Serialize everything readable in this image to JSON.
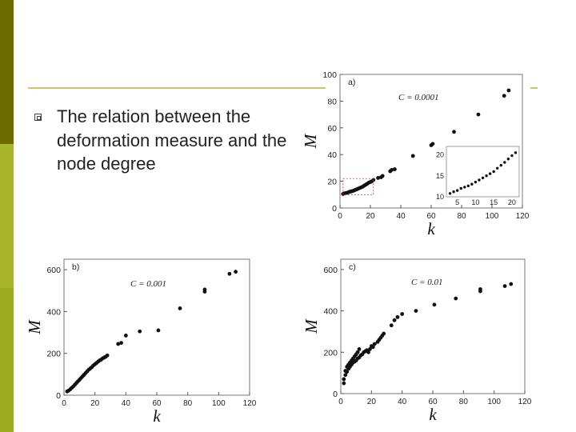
{
  "slide": {
    "body_text": "The relation between the deformation measure and the node degree",
    "accent_colors": {
      "rule": "#c8c86a",
      "sidebar_dark": "#6b6b00",
      "sidebar_light": "#a7b62a"
    }
  },
  "chart_data": [
    {
      "type": "scatter",
      "panel_label": "a)",
      "annotation": "C = 0.0001",
      "ylabel": "M",
      "xlabel": "k",
      "xlim": [
        0,
        120
      ],
      "ylim": [
        0,
        100
      ],
      "xticks": [
        0,
        20,
        40,
        60,
        80,
        100,
        120
      ],
      "yticks": [
        0,
        20,
        40,
        60,
        80,
        100
      ],
      "grid": false,
      "x": [
        2,
        3,
        4,
        5,
        6,
        7,
        8,
        9,
        10,
        11,
        12,
        13,
        14,
        15,
        16,
        17,
        18,
        19,
        20,
        21,
        22,
        25,
        27,
        28,
        33,
        34,
        36,
        48,
        60,
        61,
        75,
        91,
        108,
        111
      ],
      "y": [
        10.5,
        11,
        11.2,
        11.5,
        12,
        12.3,
        12.6,
        13,
        13.5,
        14,
        14.5,
        15,
        15.5,
        16,
        16.8,
        17.5,
        18.2,
        19,
        19.5,
        20,
        21,
        22.5,
        23,
        24,
        27.5,
        28.5,
        29,
        39,
        47,
        48,
        57,
        70,
        84,
        88
      ],
      "inset": {
        "xlim": [
          2,
          22
        ],
        "ylim": [
          10,
          22
        ],
        "xticks": [
          5,
          10,
          15,
          20
        ],
        "yticks": [
          10,
          15,
          20
        ],
        "x": [
          3,
          4,
          5,
          6,
          7,
          8,
          9,
          10,
          11,
          12,
          13,
          14,
          15,
          16,
          17,
          18,
          19,
          20,
          21
        ],
        "y": [
          10.8,
          11.2,
          11.5,
          12,
          12.3,
          12.6,
          13,
          13.5,
          14,
          14.5,
          15,
          15.5,
          16,
          16.8,
          17.5,
          18.2,
          19,
          19.8,
          20.5
        ]
      }
    },
    {
      "type": "scatter",
      "panel_label": "b)",
      "annotation": "C = 0.001",
      "ylabel": "M",
      "xlabel": "k",
      "xlim": [
        0,
        120
      ],
      "ylim": [
        0,
        650
      ],
      "xticks": [
        0,
        20,
        40,
        60,
        80,
        100,
        120
      ],
      "yticks": [
        0,
        200,
        400,
        600
      ],
      "grid": false,
      "x": [
        2,
        3,
        4,
        5,
        6,
        7,
        8,
        9,
        10,
        11,
        12,
        13,
        14,
        15,
        16,
        17,
        18,
        19,
        20,
        21,
        22,
        23,
        24,
        25,
        26,
        27,
        28,
        35,
        37,
        40,
        49,
        61,
        75,
        91,
        91,
        107,
        111
      ],
      "y": [
        18,
        22,
        28,
        35,
        42,
        50,
        58,
        66,
        74,
        82,
        90,
        98,
        106,
        114,
        122,
        128,
        134,
        142,
        148,
        154,
        160,
        166,
        170,
        176,
        180,
        184,
        190,
        245,
        250,
        285,
        305,
        310,
        415,
        495,
        505,
        580,
        590
      ]
    },
    {
      "type": "scatter",
      "panel_label": "c)",
      "annotation": "C = 0.01",
      "ylabel": "M",
      "xlabel": "k",
      "xlim": [
        0,
        120
      ],
      "ylim": [
        0,
        650
      ],
      "xticks": [
        0,
        20,
        40,
        60,
        80,
        100,
        120
      ],
      "yticks": [
        0,
        200,
        400,
        600
      ],
      "grid": false,
      "x": [
        2,
        2,
        3,
        3,
        4,
        4,
        5,
        5,
        6,
        6,
        7,
        7,
        8,
        8,
        9,
        9,
        10,
        10,
        11,
        11,
        12,
        12,
        13,
        14,
        15,
        16,
        17,
        18,
        19,
        20,
        21,
        22,
        24,
        25,
        26,
        27,
        28,
        33,
        35,
        37,
        40,
        49,
        61,
        75,
        91,
        91,
        107,
        111
      ],
      "y": [
        50,
        70,
        90,
        110,
        105,
        130,
        120,
        140,
        130,
        150,
        140,
        160,
        150,
        170,
        155,
        180,
        160,
        190,
        170,
        200,
        175,
        215,
        185,
        190,
        200,
        205,
        210,
        200,
        215,
        230,
        225,
        240,
        250,
        260,
        270,
        280,
        290,
        330,
        355,
        370,
        385,
        400,
        430,
        460,
        495,
        505,
        520,
        530
      ]
    }
  ]
}
